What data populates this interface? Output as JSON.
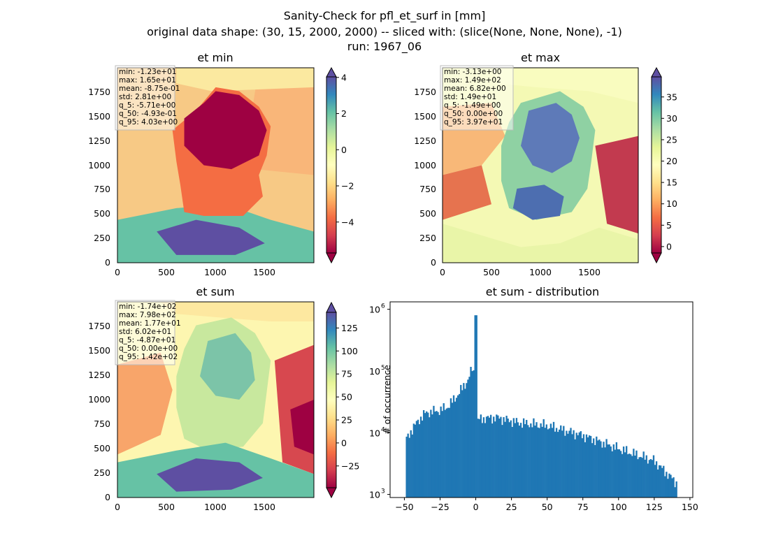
{
  "figure": {
    "title_lines": [
      "Sanity-Check for pfl_et_surf in [mm]",
      "original data shape: (30, 15, 2000, 2000) -- sliced with: (slice(None, None, None), -1)",
      "run: 1967_06"
    ]
  },
  "colors": {
    "spectral": [
      "#9e0142",
      "#d53e4f",
      "#f46d43",
      "#fdae61",
      "#fee08b",
      "#ffffbf",
      "#e6f598",
      "#abdda4",
      "#66c2a5",
      "#3288bd",
      "#5e4fa2"
    ],
    "hist_bar": "#1f77b4"
  },
  "chart_data": [
    {
      "type": "heatmap",
      "title": "et min",
      "xlim": [
        0,
        2000
      ],
      "ylim": [
        0,
        2000
      ],
      "xticks": [
        "0",
        "500",
        "1000",
        "1500"
      ],
      "yticks": [
        "0",
        "250",
        "500",
        "750",
        "1000",
        "1250",
        "1500",
        "1750"
      ],
      "colorbar": {
        "range": [
          -5.71,
          4.03
        ],
        "ticks": [
          -4,
          -2,
          0,
          2,
          4
        ],
        "tick_labels": [
          "−4",
          "−2",
          "0",
          "2",
          "4"
        ],
        "extend": "both"
      },
      "stats": [
        "min: -1.23e+01",
        "max: 1.65e+01",
        "mean: -8.75e-01",
        "std: 2.81e+00",
        "q_5: -5.71e+00",
        "q_50: -4.93e-01",
        "q_95: 4.03e+00"
      ]
    },
    {
      "type": "heatmap",
      "title": "et max",
      "xlim": [
        0,
        2000
      ],
      "ylim": [
        0,
        2000
      ],
      "xticks": [
        "0",
        "500",
        "1000",
        "1500"
      ],
      "yticks": [
        "0",
        "250",
        "500",
        "750",
        "1000",
        "1250",
        "1500",
        "1750"
      ],
      "colorbar": {
        "range": [
          -1.49,
          39.7
        ],
        "ticks": [
          0,
          5,
          10,
          15,
          20,
          25,
          30,
          35
        ],
        "tick_labels": [
          "0",
          "5",
          "10",
          "15",
          "20",
          "25",
          "30",
          "35"
        ],
        "extend": "both"
      },
      "stats": [
        "min: -3.13e+00",
        "max: 1.49e+02",
        "mean: 6.82e+00",
        "std: 1.49e+01",
        "q_5: -1.49e+00",
        "q_50: 0.00e+00",
        "q_95: 3.97e+01"
      ]
    },
    {
      "type": "heatmap",
      "title": "et sum",
      "xlim": [
        0,
        2000
      ],
      "ylim": [
        0,
        2000
      ],
      "xticks": [
        "0",
        "500",
        "1000",
        "1500"
      ],
      "yticks": [
        "0",
        "250",
        "500",
        "750",
        "1000",
        "1250",
        "1500",
        "1750"
      ],
      "colorbar": {
        "range": [
          -48.7,
          142
        ],
        "ticks": [
          -25,
          0,
          25,
          50,
          75,
          100,
          125
        ],
        "tick_labels": [
          "−25",
          "0",
          "25",
          "50",
          "75",
          "100",
          "125"
        ],
        "extend": "both"
      },
      "stats": [
        "min: -1.74e+02",
        "max: 7.98e+02",
        "mean: 1.77e+01",
        "std: 6.02e+01",
        "q_5: -4.87e+01",
        "q_50: 0.00e+00",
        "q_95: 1.42e+02"
      ]
    },
    {
      "type": "bar",
      "title": "et sum - distribution",
      "ylabel": "# of occurrence",
      "xlim": [
        -60,
        152
      ],
      "yscale": "log",
      "ylim_log10": [
        2.95,
        6.12
      ],
      "xticks": [
        -50,
        -25,
        0,
        25,
        50,
        75,
        100,
        125,
        150
      ],
      "xtick_labels": [
        "−50",
        "−25",
        "0",
        "25",
        "50",
        "75",
        "100",
        "125",
        "150"
      ],
      "yticks_exp": [
        "3",
        "4",
        "5",
        "6"
      ],
      "bin_range": [
        -49,
        141
      ],
      "anchors": [
        [
          -49,
          7500
        ],
        [
          -45,
          11000
        ],
        [
          -40,
          16000
        ],
        [
          -35,
          21000
        ],
        [
          -30,
          22000
        ],
        [
          -25,
          23000
        ],
        [
          -20,
          26000
        ],
        [
          -15,
          35000
        ],
        [
          -10,
          50000
        ],
        [
          -5,
          75000
        ],
        [
          -2,
          120000
        ],
        [
          -0.5,
          60000
        ],
        [
          0,
          800000
        ],
        [
          0.5,
          35000
        ],
        [
          1.5,
          16000
        ],
        [
          5,
          17000
        ],
        [
          15,
          17500
        ],
        [
          30,
          14500
        ],
        [
          50,
          13000
        ],
        [
          75,
          9000
        ],
        [
          100,
          5500
        ],
        [
          125,
          3500
        ],
        [
          141,
          1500
        ]
      ]
    }
  ]
}
